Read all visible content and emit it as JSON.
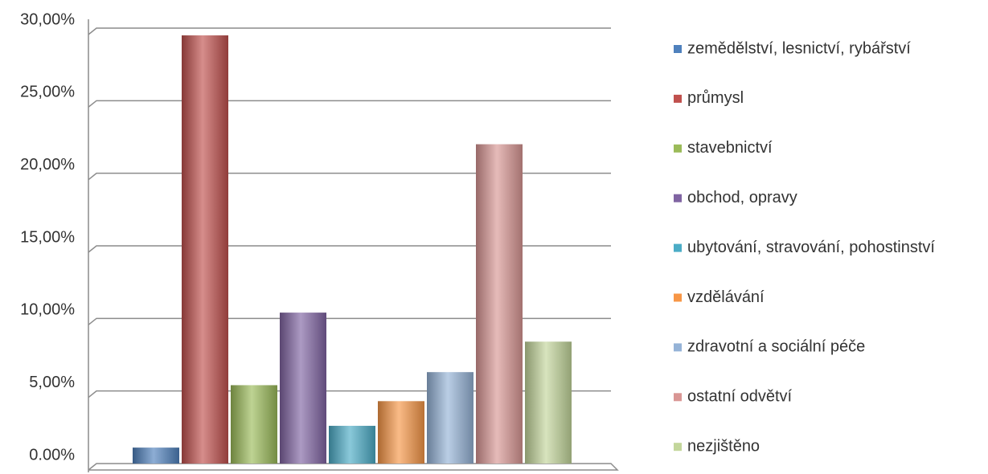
{
  "chart_data": {
    "type": "bar",
    "ylim": [
      0,
      30
    ],
    "yticks": [
      {
        "value": 0,
        "label": "0.00%"
      },
      {
        "value": 5,
        "label": "5,00%"
      },
      {
        "value": 10,
        "label": "10,00%"
      },
      {
        "value": 15,
        "label": "15,00%"
      },
      {
        "value": 20,
        "label": "20,00%"
      },
      {
        "value": 25,
        "label": "25,00%"
      },
      {
        "value": 30,
        "label": "30,00%"
      }
    ],
    "grid": true,
    "legend": "right",
    "series": [
      {
        "name": "zemědělství, lesnictví, rybářství",
        "color": "#4f81bd",
        "values": [
          1.1
        ]
      },
      {
        "name": "průmysl",
        "color": "#c0504d",
        "values": [
          29.5
        ]
      },
      {
        "name": "stavebnictví",
        "color": "#9bbb59",
        "values": [
          5.4
        ]
      },
      {
        "name": "obchod, opravy",
        "color": "#8064a2",
        "values": [
          10.4
        ]
      },
      {
        "name": "ubytování, stravování, pohostinství",
        "color": "#4bacc6",
        "values": [
          2.6
        ]
      },
      {
        "name": "vzdělávání",
        "color": "#f79646",
        "values": [
          4.3
        ]
      },
      {
        "name": "zdravotní a sociální péče",
        "color": "#95b3d7",
        "values": [
          6.3
        ]
      },
      {
        "name": "ostatní odvětví",
        "color": "#d99694",
        "values": [
          22.0
        ]
      },
      {
        "name": "nezjištěno",
        "color": "#c3d69b",
        "values": [
          8.4
        ]
      }
    ]
  }
}
